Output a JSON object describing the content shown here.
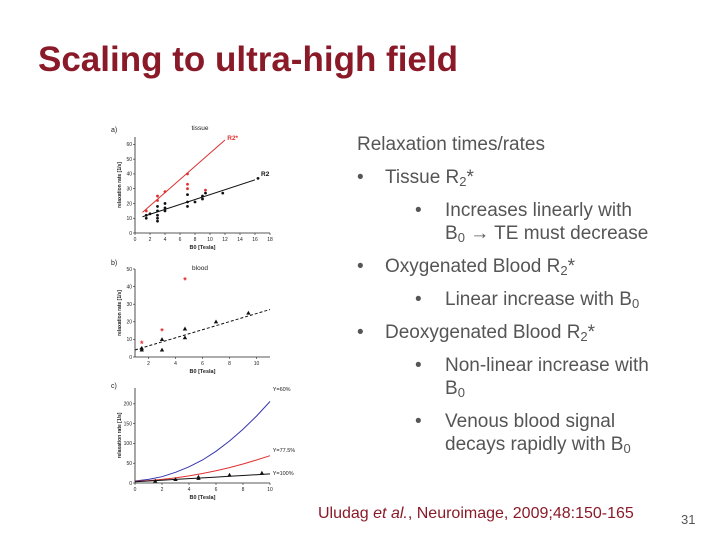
{
  "title": "Scaling to ultra-high field",
  "figure": {
    "panel_a": {
      "label": "a)",
      "caption": "tissue",
      "ylabel": "relaxation rate [1/s]",
      "xlabel": "B0 [Tesla]",
      "x_ticks": [
        "0",
        "2",
        "4",
        "6",
        "8",
        "10",
        "12",
        "14",
        "16",
        "18"
      ],
      "y_ticks": [
        "0",
        "10",
        "20",
        "30",
        "40",
        "50",
        "60"
      ],
      "r2star_label": "R2*",
      "r2_label": "R2"
    },
    "panel_b": {
      "label": "b)",
      "caption": "blood",
      "ylabel": "relaxation rate [1/s]",
      "xlabel": "B0 [Tesla]",
      "x_ticks": [
        "2",
        "4",
        "6",
        "8",
        "10"
      ],
      "y_ticks": [
        "0",
        "10",
        "20",
        "30",
        "40",
        "50"
      ]
    },
    "panel_c": {
      "label": "c)",
      "ylabel": "relaxation rate [1/s]",
      "xlabel": "B0 [Tesla]",
      "x_ticks": [
        "0",
        "2",
        "4",
        "6",
        "8",
        "10"
      ],
      "y_ticks": [
        "0",
        "50",
        "100",
        "150",
        "200"
      ],
      "series_labels": [
        "Y=60%",
        "Y=77.5%",
        "Y=100%"
      ]
    },
    "colors": {
      "red": "#e03030",
      "blue": "#3535b0",
      "black": "#111111"
    }
  },
  "chart_data": [
    {
      "type": "scatter",
      "title": "tissue",
      "xlabel": "B0 [Tesla]",
      "ylabel": "relaxation rate [1/s]",
      "xlim": [
        0,
        18
      ],
      "ylim": [
        0,
        65
      ],
      "series": [
        {
          "name": "R2*",
          "color": "#e03030",
          "line": [
            [
              1,
              14
            ],
            [
              12,
              63
            ]
          ],
          "points": [
            [
              1.5,
              15
            ],
            [
              3,
              22
            ],
            [
              3,
              25
            ],
            [
              4,
              28
            ],
            [
              7,
              40
            ],
            [
              7,
              33
            ],
            [
              7,
              30
            ],
            [
              9.4,
              29
            ]
          ]
        },
        {
          "name": "R2",
          "color": "#111111",
          "line": [
            [
              1,
              11
            ],
            [
              16,
              36
            ]
          ],
          "points": [
            [
              1.5,
              10
            ],
            [
              1.5,
              12
            ],
            [
              2,
              13
            ],
            [
              3,
              10
            ],
            [
              3,
              8
            ],
            [
              3,
              12
            ],
            [
              3,
              15
            ],
            [
              3,
              18
            ],
            [
              4,
              15
            ],
            [
              4,
              17
            ],
            [
              4,
              20
            ],
            [
              7,
              18
            ],
            [
              7,
              21
            ],
            [
              7,
              26
            ],
            [
              8,
              21
            ],
            [
              9,
              23
            ],
            [
              9,
              25
            ],
            [
              9.4,
              27
            ],
            [
              11.7,
              27
            ],
            [
              16.4,
              37
            ]
          ]
        }
      ]
    },
    {
      "type": "scatter",
      "title": "blood",
      "xlabel": "B0 [Tesla]",
      "ylabel": "relaxation rate [1/s]",
      "xlim": [
        1,
        11
      ],
      "ylim": [
        0,
        50
      ],
      "series": [
        {
          "color": "#e03030",
          "points": [
            [
              1.5,
              7
            ],
            [
              3,
              14
            ],
            [
              4.7,
              43
            ]
          ]
        },
        {
          "color": "#111111",
          "line": [
            [
              1,
              4
            ],
            [
              11,
              27
            ]
          ],
          "points": [
            [
              1.5,
              4
            ],
            [
              1.5,
              5
            ],
            [
              3,
              4
            ],
            [
              3,
              10
            ],
            [
              4.7,
              11
            ],
            [
              4.7,
              16
            ],
            [
              7,
              20
            ],
            [
              9.4,
              25
            ]
          ]
        }
      ]
    },
    {
      "type": "line",
      "xlabel": "B0 [Tesla]",
      "ylabel": "relaxation rate [1/s]",
      "xlim": [
        0,
        10
      ],
      "ylim": [
        0,
        240
      ],
      "series": [
        {
          "name": "Y=60%",
          "color": "#3535b0",
          "x": [
            0,
            1,
            2,
            3,
            4,
            5,
            6,
            7,
            8,
            9,
            10
          ],
          "y": [
            5,
            9,
            16,
            27,
            41,
            58,
            80,
            106,
            136,
            169,
            206
          ]
        },
        {
          "name": "Y=77.5%",
          "color": "#e03030",
          "x": [
            0,
            1,
            2,
            3,
            4,
            5,
            6,
            7,
            8,
            9,
            10
          ],
          "y": [
            4,
            6,
            9,
            13,
            18,
            24,
            31,
            39,
            48,
            58,
            69
          ]
        },
        {
          "name": "Y=100%",
          "color": "#111111",
          "x": [
            0,
            1,
            2,
            3,
            4,
            5,
            6,
            7,
            8,
            9,
            10
          ],
          "y": [
            3,
            5,
            7,
            9,
            11,
            13,
            15,
            17,
            19,
            21,
            23
          ],
          "points": [
            [
              1.5,
              5
            ],
            [
              3,
              9
            ],
            [
              4.7,
              12
            ],
            [
              4.7,
              15
            ],
            [
              7,
              20
            ],
            [
              9.4,
              25
            ]
          ]
        }
      ]
    }
  ],
  "content": {
    "intro": "Relaxation times/rates",
    "b1_text": "Tissue R",
    "b1_sub": "2",
    "b1_tail": "*",
    "b1_1_line1": "Increases linearly with",
    "b1_1_pre": "B",
    "b1_1_sub": "0",
    "b1_1_tail": " → TE must decrease",
    "b2_text": "Oxygenated Blood R",
    "b2_sub": "2",
    "b2_tail": "*",
    "b2_1_text": "Linear increase with B",
    "b2_1_sub": "0",
    "b3_text": "Deoxygenated Blood R",
    "b3_sub": "2",
    "b3_tail": "*",
    "b3_1_line1": "Non-linear increase with",
    "b3_1_pre": "B",
    "b3_1_sub": "0",
    "b3_2_line1": "Venous blood signal",
    "b3_2_line2": "decays rapidly with B",
    "b3_2_sub": "0",
    "bullet": "•"
  },
  "citation": {
    "author": "Uludag ",
    "etal": "et al.",
    "rest": ", Neuroimage, 2009;48:150-165"
  },
  "page_number": "31"
}
